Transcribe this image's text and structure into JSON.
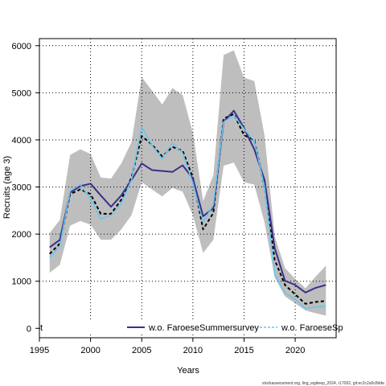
{
  "chart_data": {
    "type": "line",
    "title": "",
    "xlabel": "Years",
    "ylabel": "Recruits (age 3)",
    "xlim": [
      1995,
      2024
    ],
    "ylim": [
      -200,
      6150
    ],
    "xticks": [
      1995,
      2000,
      2005,
      2010,
      2015,
      2020
    ],
    "yticks": [
      0,
      1000,
      2000,
      3000,
      4000,
      5000,
      6000
    ],
    "grid": true,
    "legend_position": "bottom",
    "x": [
      1996,
      1997,
      1998,
      1999,
      2000,
      2001,
      2002,
      2003,
      2004,
      2005,
      2006,
      2007,
      2008,
      2009,
      2010,
      2011,
      2012,
      2013,
      2014,
      2015,
      2016,
      2017,
      2018,
      2019,
      2020,
      2021,
      2022,
      2023
    ],
    "band": {
      "color": "#bebebe",
      "lower": [
        1180,
        1350,
        2180,
        2280,
        2200,
        1880,
        1880,
        2100,
        2400,
        3100,
        2950,
        2800,
        2980,
        2900,
        2400,
        1600,
        1880,
        3450,
        3520,
        3100,
        3050,
        2250,
        1080,
        680,
        530,
        380,
        320,
        270
      ],
      "upper": [
        2020,
        2300,
        3680,
        3800,
        3700,
        3200,
        3180,
        3500,
        3950,
        5330,
        5050,
        4750,
        5100,
        4950,
        4150,
        2700,
        3250,
        5800,
        5900,
        5320,
        5250,
        4100,
        1950,
        1280,
        1050,
        850,
        1100,
        1330
      ]
    },
    "series": [
      {
        "name": "",
        "color": "#000000",
        "dash": "4,3",
        "width": 2,
        "values": [
          1580,
          1800,
          2850,
          2950,
          2850,
          2430,
          2430,
          2730,
          3200,
          4080,
          3900,
          3650,
          3850,
          3770,
          3200,
          2100,
          2450,
          4450,
          4550,
          4100,
          4000,
          3000,
          1450,
          920,
          720,
          520,
          560,
          580
        ]
      },
      {
        "name": "w.o. FaroeseSummersurvey",
        "color": "#3b2f8a",
        "dash": "",
        "width": 2,
        "values": [
          1720,
          1880,
          2880,
          3020,
          3070,
          2820,
          2580,
          2820,
          3150,
          3500,
          3360,
          3340,
          3320,
          3460,
          3180,
          2380,
          2550,
          4380,
          4620,
          4250,
          3800,
          3150,
          1700,
          1010,
          920,
          760,
          860,
          920
        ]
      },
      {
        "name": "w.o. FaroeseSp",
        "color": "#67c6ef",
        "dash": "",
        "width": 1.5,
        "values": [
          1500,
          1750,
          2920,
          3050,
          2750,
          2320,
          2400,
          2650,
          3150,
          4280,
          3880,
          3600,
          3930,
          3720,
          3080,
          2260,
          2620,
          4380,
          4520,
          4230,
          3980,
          3000,
          1150,
          750,
          620,
          420,
          450,
          470
        ]
      }
    ],
    "legend_fragment": "t",
    "footer": "stockassessment.org, ling_wgdeep_2024, r17002, git:ec2c2a0c8dde"
  }
}
